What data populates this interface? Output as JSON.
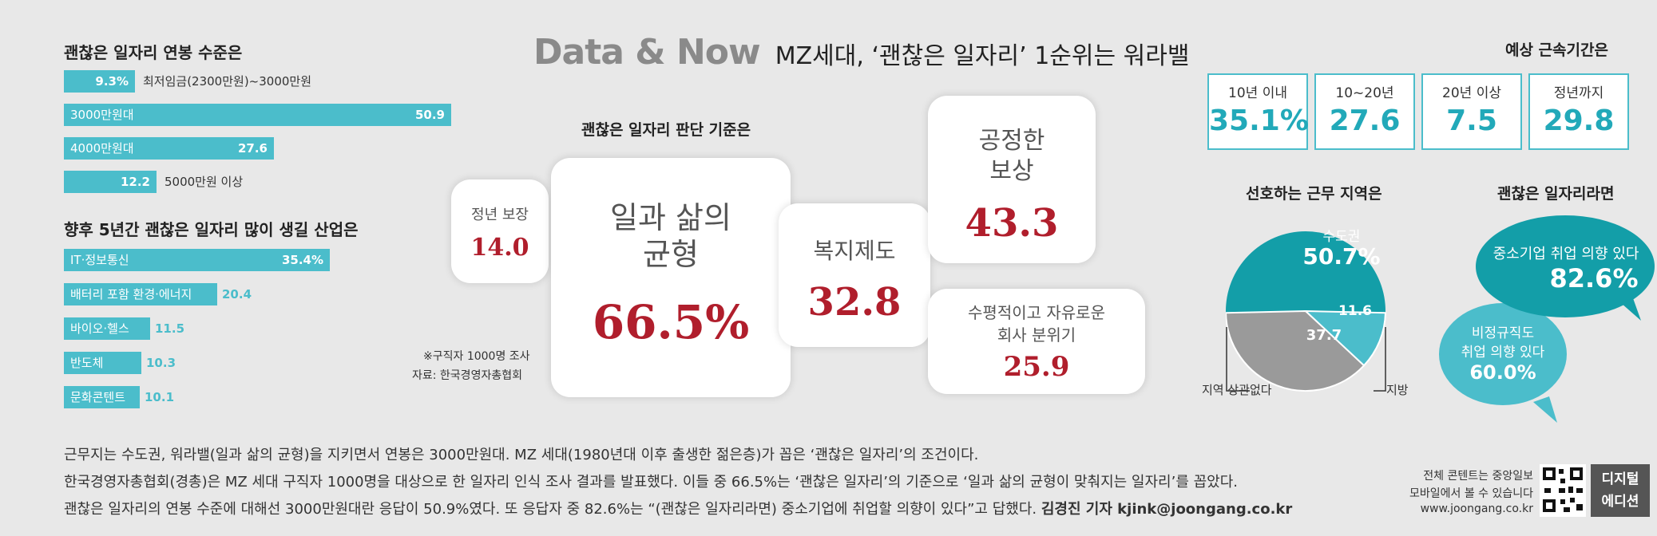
{
  "header": {
    "main": "Data & Now",
    "sub": "MZ세대, ‘괜찮은 일자리’ 1순위는 워라밸"
  },
  "salary": {
    "title": "괜찮은 일자리 연봉 수준은",
    "items": [
      {
        "label": "최저임금(2300만원)~3000만원",
        "value": 9.3,
        "value_text": "9.3%"
      },
      {
        "label": "3000만원대",
        "value": 50.9,
        "value_text": "50.9"
      },
      {
        "label": "4000만원대",
        "value": 27.6,
        "value_text": "27.6"
      },
      {
        "label": "5000만원 이상",
        "value": 12.2,
        "value_text": "12.2"
      }
    ]
  },
  "industry": {
    "title": "향후 5년간 괜찮은 일자리 많이 생길 산업은",
    "items": [
      {
        "label": "IT·정보통신",
        "value": 35.4,
        "value_text": "35.4%"
      },
      {
        "label": "배터리 포함 환경·에너지",
        "value": 20.4,
        "value_text": "20.4"
      },
      {
        "label": "바이오·헬스",
        "value": 11.5,
        "value_text": "11.5"
      },
      {
        "label": "반도체",
        "value": 10.3,
        "value_text": "10.3"
      },
      {
        "label": "문화콘텐트",
        "value": 10.1,
        "value_text": "10.1"
      }
    ]
  },
  "criteria": {
    "title": "괜찮은 일자리 판단 기준은",
    "items": [
      {
        "label": "정년 보장",
        "value": "14.0"
      },
      {
        "label": "일과 삶의 균형",
        "value": "66.5%"
      },
      {
        "label": "복지제도",
        "value": "32.8"
      },
      {
        "label": "공정한 보상",
        "value": "43.3"
      },
      {
        "label": "수평적이고 자유로운 회사 분위기",
        "value": "25.9"
      }
    ],
    "note1": "※구직자 1000명 조사",
    "note2": "자료: 한국경영자총협회"
  },
  "tenure": {
    "title": "예상 근속기간은",
    "items": [
      {
        "label": "10년 이내",
        "value": "35.1%"
      },
      {
        "label": "10~20년",
        "value": "27.6"
      },
      {
        "label": "20년 이상",
        "value": "7.5"
      },
      {
        "label": "정년까지",
        "value": "29.8"
      }
    ]
  },
  "region": {
    "title": "선호하는 근무 지역은",
    "capital_label": "수도권",
    "capital_value": "50.7%",
    "any_label": "지역 상관없다",
    "any_value": "37.7",
    "local_label": "지방",
    "local_value": "11.6"
  },
  "ifgood": {
    "title": "괜찮은 일자리라면",
    "sme_label": "중소기업 취업 의향 있다",
    "sme_value": "82.6%",
    "nonreg_label1": "비정규직도",
    "nonreg_label2": "취업 의향 있다",
    "nonreg_value": "60.0%"
  },
  "chart_data": [
    {
      "type": "bar",
      "title": "괜찮은 일자리 연봉 수준은",
      "categories": [
        "최저임금(2300만원)~3000만원",
        "3000만원대",
        "4000만원대",
        "5000만원 이상"
      ],
      "values": [
        9.3,
        50.9,
        27.6,
        12.2
      ]
    },
    {
      "type": "bar",
      "title": "향후 5년간 괜찮은 일자리 많이 생길 산업은",
      "categories": [
        "IT·정보통신",
        "배터리 포함 환경·에너지",
        "바이오·헬스",
        "반도체",
        "문화콘텐트"
      ],
      "values": [
        35.4,
        20.4,
        11.5,
        10.3,
        10.1
      ]
    },
    {
      "type": "bar",
      "title": "괜찮은 일자리 판단 기준은",
      "categories": [
        "일과 삶의 균형",
        "공정한 보상",
        "복지제도",
        "수평적이고 자유로운 회사 분위기",
        "정년 보장"
      ],
      "values": [
        66.5,
        43.3,
        32.8,
        25.9,
        14.0
      ]
    },
    {
      "type": "table",
      "title": "예상 근속기간은",
      "categories": [
        "10년 이내",
        "10~20년",
        "20년 이상",
        "정년까지"
      ],
      "values": [
        35.1,
        27.6,
        7.5,
        29.8
      ]
    },
    {
      "type": "pie",
      "title": "선호하는 근무 지역은",
      "categories": [
        "수도권",
        "지역 상관없다",
        "지방"
      ],
      "values": [
        50.7,
        37.7,
        11.6
      ]
    },
    {
      "type": "bar",
      "title": "괜찮은 일자리라면",
      "categories": [
        "중소기업 취업 의향 있다",
        "비정규직도 취업 의향 있다"
      ],
      "values": [
        82.6,
        60.0
      ]
    }
  ],
  "article": {
    "line1": "근무지는 수도권, 워라밸(일과 삶의 균형)을 지키면서 연봉은 3000만원대. MZ 세대(1980년대 이후 출생한 젊은층)가 꼽은 ‘괜찮은 일자리’의 조건이다.",
    "line2": "한국경영자총협회(경총)은 MZ 세대 구직자 1000명을 대상으로 한 일자리 인식 조사 결과를 발표했다. 이들 중 66.5%는 ‘괜찮은 일자리’의 기준으로 ‘일과 삶의 균형이 맞춰지는 일자리’를 꼽았다.",
    "line3": "괜찮은 일자리의 연봉 수준에 대해선 3000만원대란 응답이 50.9%였다. 또 응답자 중 82.6%는 “(괜찮은 일자리라면) 중소기업에 취업할 의향이 있다”고 답했다.",
    "byline": "김경진 기자 kjink@joongang.co.kr"
  },
  "footer": {
    "line1": "전체 콘텐트는 중앙일보",
    "line2": "모바일에서 볼 수 있습니다",
    "line3": "www.joongang.co.kr",
    "badge1": "디지털",
    "badge2": "에디션"
  },
  "colors": {
    "accent": "#4bbdcb",
    "accent_dark": "#22a9b9",
    "highlight": "#b01e2c",
    "gray": "#9a9a9a"
  }
}
